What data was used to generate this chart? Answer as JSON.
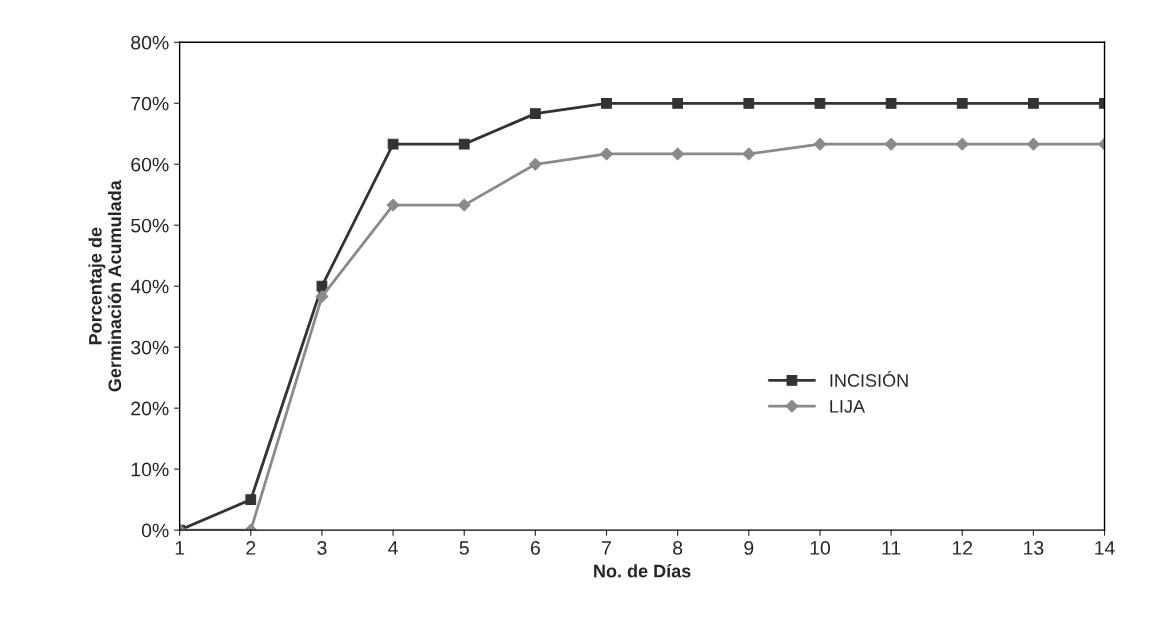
{
  "chart_data": {
    "type": "line",
    "xlabel": "No. de Días",
    "ylabel": "Porcentaje de\nGerminación Acumulada",
    "categories": [
      "1",
      "2",
      "3",
      "4",
      "5",
      "6",
      "7",
      "8",
      "9",
      "10",
      "11",
      "12",
      "13",
      "14"
    ],
    "series": [
      {
        "name": "INCISIÓN",
        "color": "#333333",
        "marker": "square",
        "values": [
          0,
          5,
          40,
          63.3,
          63.3,
          68.3,
          70,
          70,
          70,
          70,
          70,
          70,
          70,
          70
        ]
      },
      {
        "name": "LIJA",
        "color": "#8a8a8a",
        "marker": "diamond",
        "values": [
          0,
          0,
          38.3,
          53.3,
          53.3,
          60,
          61.7,
          61.7,
          61.7,
          63.3,
          63.3,
          63.3,
          63.3,
          63.3
        ]
      }
    ],
    "ylim": [
      0,
      80
    ],
    "yticks": [
      {
        "value": 0,
        "label": "0%"
      },
      {
        "value": 10,
        "label": "10%"
      },
      {
        "value": 20,
        "label": "20%"
      },
      {
        "value": 30,
        "label": "30%"
      },
      {
        "value": 40,
        "label": "40%"
      },
      {
        "value": 50,
        "label": "50%"
      },
      {
        "value": 60,
        "label": "60%"
      },
      {
        "value": 70,
        "label": "70%"
      },
      {
        "value": 80,
        "label": "80%"
      }
    ],
    "grid": false,
    "legend": "bottom right",
    "line_style": "solid"
  }
}
